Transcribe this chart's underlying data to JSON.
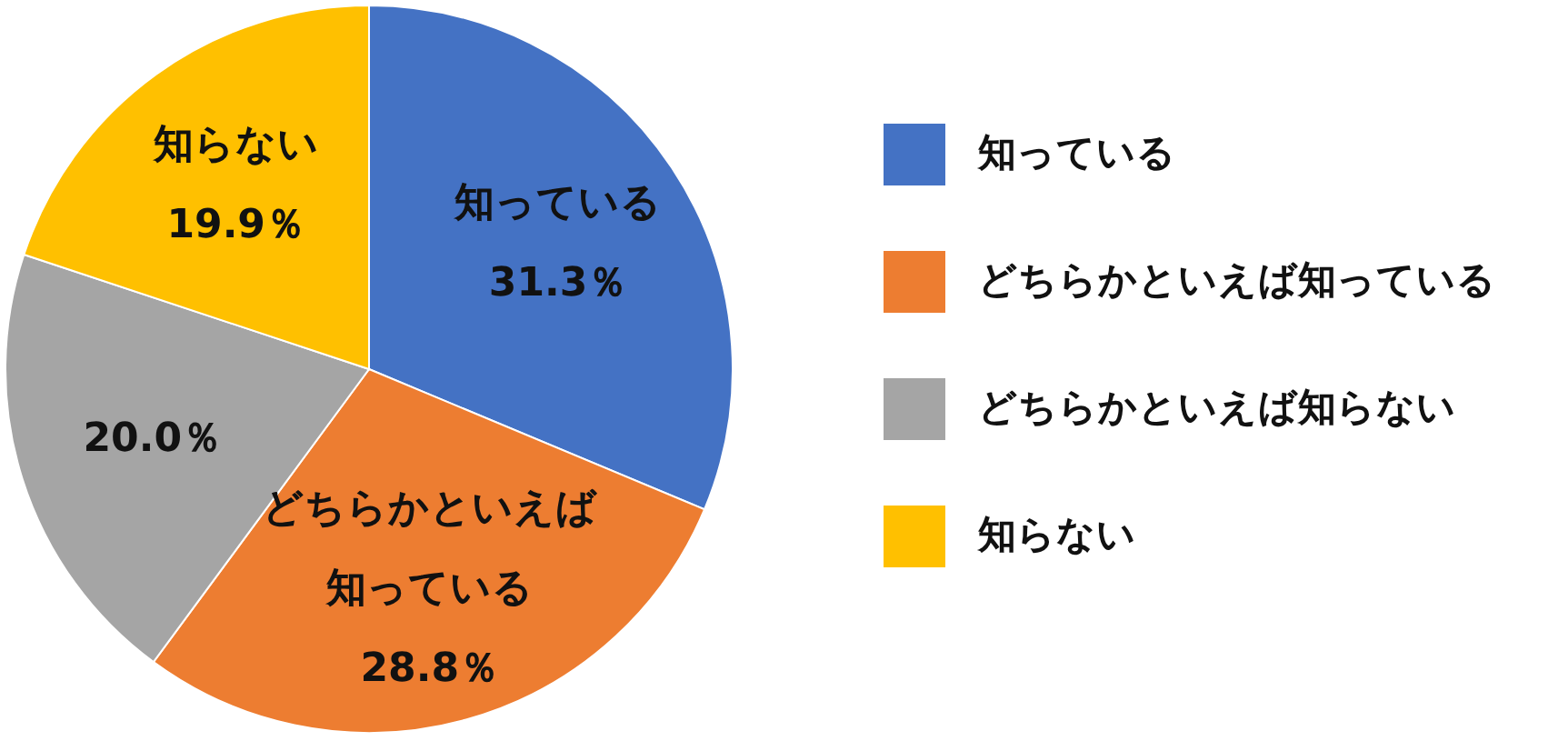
{
  "chart_data": {
    "type": "pie",
    "categories": [
      "知っている",
      "どちらかといえば知っている",
      "どちらかといえば知らない",
      "知らない"
    ],
    "values": [
      31.3,
      28.8,
      20.0,
      19.9
    ],
    "colors": [
      "#4472c4",
      "#ed7d31",
      "#a5a5a5",
      "#ffc000"
    ],
    "value_labels": [
      "知っている\n31.3％",
      "どちらかといえば知っている\n28.8％",
      "20.0％",
      "知らない\n19.9％"
    ],
    "legend": "right"
  }
}
